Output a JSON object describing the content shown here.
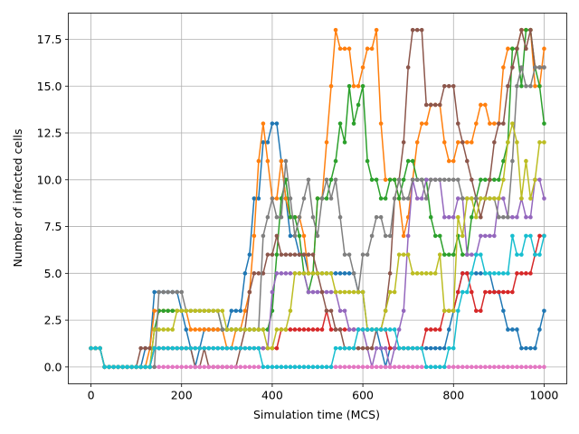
{
  "chart_data": {
    "type": "line",
    "title": "",
    "xlabel": "Simulation time (MCS)",
    "ylabel": "Number of infected cells",
    "xlim": [
      -50,
      1050
    ],
    "ylim": [
      -0.9,
      18.9
    ],
    "xticks": [
      0,
      200,
      400,
      600,
      800,
      1000
    ],
    "yticks": [
      0.0,
      2.5,
      5.0,
      7.5,
      10.0,
      12.5,
      15.0,
      17.5
    ],
    "xtick_labels": [
      "0",
      "200",
      "400",
      "600",
      "800",
      "1000"
    ],
    "ytick_labels": [
      "0.0",
      "2.5",
      "5.0",
      "7.5",
      "10.0",
      "12.5",
      "15.0",
      "17.5"
    ],
    "grid": true,
    "marker": "circle",
    "x": [
      0,
      10,
      20,
      30,
      40,
      50,
      60,
      70,
      80,
      90,
      100,
      110,
      120,
      130,
      140,
      150,
      160,
      170,
      180,
      190,
      200,
      210,
      220,
      230,
      240,
      250,
      260,
      270,
      280,
      290,
      300,
      310,
      320,
      330,
      340,
      350,
      360,
      370,
      380,
      390,
      400,
      410,
      420,
      430,
      440,
      450,
      460,
      470,
      480,
      490,
      500,
      510,
      520,
      530,
      540,
      550,
      560,
      570,
      580,
      590,
      600,
      610,
      620,
      630,
      640,
      650,
      660,
      670,
      680,
      690,
      700,
      710,
      720,
      730,
      740,
      750,
      760,
      770,
      780,
      790,
      800,
      810,
      820,
      830,
      840,
      850,
      860,
      870,
      880,
      890,
      900,
      910,
      920,
      930,
      940,
      950,
      960,
      970,
      980,
      990,
      1000
    ],
    "series": [
      {
        "color": "#1f77b4",
        "values": [
          1,
          1,
          1,
          0,
          0,
          0,
          0,
          0,
          0,
          0,
          0,
          0,
          1,
          1,
          4,
          4,
          4,
          4,
          4,
          4,
          3,
          2,
          1,
          0,
          1,
          2,
          2,
          2,
          2,
          2,
          2,
          3,
          3,
          3,
          5,
          6,
          9,
          9,
          12,
          12,
          13,
          13,
          11,
          9,
          7,
          7,
          6,
          6,
          5,
          5,
          5,
          5,
          5,
          5,
          5,
          5,
          5,
          5,
          5,
          4,
          4,
          2,
          2,
          2,
          1,
          0,
          1,
          1,
          1,
          1,
          1,
          1,
          1,
          1,
          1,
          1,
          1,
          1,
          1,
          2,
          3,
          4,
          5,
          5,
          5,
          5,
          5,
          5,
          5,
          4,
          4,
          3,
          2,
          2,
          2,
          1,
          1,
          1,
          1,
          2,
          3
        ]
      },
      {
        "color": "#ff7f0e",
        "values": [
          1,
          1,
          1,
          0,
          0,
          0,
          0,
          0,
          0,
          0,
          0,
          0,
          0,
          1,
          3,
          3,
          3,
          3,
          3,
          3,
          3,
          3,
          2,
          2,
          2,
          2,
          2,
          2,
          2,
          2,
          1,
          1,
          2,
          2,
          3,
          4,
          7,
          11,
          13,
          11,
          9,
          9,
          11,
          9,
          8,
          8,
          8,
          7,
          5,
          5,
          9,
          9,
          12,
          15,
          18,
          17,
          17,
          17,
          15,
          15,
          16,
          17,
          17,
          18,
          13,
          10,
          10,
          10,
          9,
          7,
          8,
          10,
          12,
          13,
          13,
          14,
          14,
          14,
          12,
          11,
          11,
          12,
          12,
          12,
          12,
          13,
          14,
          14,
          13,
          13,
          13,
          16,
          17,
          17,
          17,
          18,
          18,
          18,
          15,
          15,
          17
        ]
      },
      {
        "color": "#2ca02c",
        "values": [
          1,
          1,
          1,
          0,
          0,
          0,
          0,
          0,
          0,
          0,
          0,
          0,
          0,
          0,
          2,
          3,
          3,
          3,
          3,
          3,
          3,
          3,
          3,
          3,
          3,
          3,
          3,
          3,
          3,
          2,
          2,
          2,
          2,
          2,
          2,
          2,
          2,
          2,
          2,
          2,
          3,
          6,
          9,
          10,
          8,
          8,
          7,
          5,
          4,
          5,
          9,
          9,
          9,
          10,
          11,
          13,
          12,
          15,
          13,
          14,
          15,
          11,
          10,
          10,
          9,
          9,
          10,
          10,
          9,
          10,
          11,
          11,
          10,
          10,
          10,
          8,
          7,
          7,
          6,
          6,
          6,
          7,
          6,
          6,
          8,
          9,
          10,
          10,
          10,
          10,
          10,
          11,
          12,
          17,
          17,
          15,
          18,
          18,
          16,
          15,
          13
        ]
      },
      {
        "color": "#d62728",
        "values": [
          1,
          1,
          1,
          0,
          0,
          0,
          0,
          0,
          0,
          0,
          0,
          0,
          0,
          0,
          1,
          1,
          1,
          1,
          1,
          1,
          1,
          1,
          1,
          1,
          1,
          1,
          1,
          1,
          1,
          1,
          1,
          1,
          1,
          1,
          1,
          1,
          1,
          1,
          1,
          1,
          1,
          1,
          2,
          2,
          2,
          2,
          2,
          2,
          2,
          2,
          2,
          2,
          3,
          2,
          2,
          2,
          2,
          2,
          2,
          2,
          2,
          2,
          2,
          2,
          2,
          2,
          1,
          1,
          1,
          1,
          1,
          1,
          1,
          1,
          2,
          2,
          2,
          2,
          3,
          3,
          3,
          4,
          5,
          5,
          4,
          3,
          3,
          4,
          4,
          4,
          4,
          4,
          4,
          4,
          5,
          5,
          5,
          5,
          6,
          7,
          7
        ]
      },
      {
        "color": "#9467bd",
        "values": [
          1,
          1,
          1,
          0,
          0,
          0,
          0,
          0,
          0,
          0,
          0,
          0,
          0,
          0,
          1,
          1,
          1,
          1,
          1,
          1,
          1,
          1,
          1,
          1,
          1,
          1,
          1,
          1,
          1,
          1,
          1,
          1,
          1,
          1,
          1,
          1,
          1,
          1,
          1,
          1,
          4,
          5,
          5,
          5,
          5,
          5,
          5,
          5,
          4,
          4,
          4,
          4,
          4,
          4,
          4,
          3,
          3,
          2,
          2,
          2,
          2,
          1,
          0,
          1,
          1,
          1,
          0,
          1,
          2,
          3,
          7,
          10,
          9,
          9,
          10,
          10,
          10,
          10,
          8,
          8,
          8,
          9,
          9,
          6,
          6,
          6,
          7,
          7,
          7,
          7,
          9,
          9,
          8,
          8,
          8,
          9,
          8,
          8,
          10,
          10,
          9
        ]
      },
      {
        "color": "#8c564b",
        "values": [
          1,
          1,
          1,
          0,
          0,
          0,
          0,
          0,
          0,
          0,
          0,
          1,
          1,
          1,
          1,
          1,
          1,
          1,
          1,
          1,
          1,
          1,
          1,
          0,
          0,
          1,
          0,
          0,
          0,
          0,
          0,
          0,
          0,
          1,
          2,
          4,
          5,
          5,
          5,
          6,
          6,
          7,
          6,
          6,
          6,
          6,
          6,
          6,
          6,
          6,
          5,
          4,
          3,
          3,
          2,
          2,
          1,
          1,
          1,
          1,
          1,
          1,
          1,
          2,
          2,
          3,
          5,
          9,
          10,
          12,
          16,
          18,
          18,
          18,
          14,
          14,
          14,
          14,
          15,
          15,
          15,
          13,
          12,
          11,
          10,
          9,
          8,
          9,
          10,
          12,
          13,
          13,
          15,
          16,
          17,
          18,
          17,
          18,
          16,
          16,
          16
        ]
      },
      {
        "color": "#e377c2",
        "values": [
          1,
          1,
          1,
          0,
          0,
          0,
          0,
          0,
          0,
          0,
          0,
          0,
          0,
          0,
          0,
          0,
          0,
          0,
          0,
          0,
          0,
          0,
          0,
          0,
          0,
          0,
          0,
          0,
          0,
          0,
          0,
          0,
          0,
          0,
          0,
          0,
          0,
          0,
          0,
          0,
          0,
          0,
          0,
          0,
          0,
          0,
          0,
          0,
          0,
          0,
          0,
          0,
          0,
          0,
          0,
          0,
          0,
          0,
          0,
          0,
          0,
          0,
          0,
          0,
          0,
          0,
          0,
          0,
          0,
          0,
          0,
          0,
          0,
          0,
          0,
          0,
          0,
          0,
          0,
          0,
          0,
          0,
          0,
          0,
          0,
          0,
          0,
          0,
          0,
          0,
          0,
          0,
          0,
          0,
          0,
          0,
          0,
          0,
          0,
          0,
          0
        ]
      },
      {
        "color": "#7f7f7f",
        "values": [
          1,
          1,
          1,
          0,
          0,
          0,
          0,
          0,
          0,
          0,
          0,
          0,
          0,
          0,
          0,
          4,
          4,
          4,
          4,
          4,
          4,
          3,
          3,
          3,
          3,
          3,
          3,
          3,
          3,
          2,
          2,
          2,
          2,
          2,
          2,
          2,
          2,
          2,
          7,
          8,
          9,
          8,
          8,
          11,
          9,
          7,
          8,
          9,
          10,
          8,
          7,
          9,
          10,
          9,
          10,
          8,
          6,
          6,
          5,
          4,
          6,
          6,
          7,
          8,
          8,
          7,
          7,
          9,
          10,
          9,
          9,
          10,
          10,
          10,
          9,
          10,
          10,
          10,
          10,
          10,
          10,
          10,
          9,
          9,
          9,
          9,
          9,
          9,
          9,
          9,
          8,
          8,
          8,
          11,
          15,
          16,
          15,
          15,
          16,
          16,
          16
        ]
      },
      {
        "color": "#bcbd22",
        "values": [
          1,
          1,
          1,
          0,
          0,
          0,
          0,
          0,
          0,
          0,
          0,
          0,
          0,
          0,
          2,
          2,
          2,
          2,
          2,
          3,
          3,
          3,
          3,
          3,
          3,
          3,
          3,
          3,
          3,
          3,
          2,
          2,
          2,
          2,
          2,
          2,
          2,
          2,
          2,
          1,
          1,
          2,
          2,
          2,
          3,
          5,
          5,
          5,
          5,
          5,
          5,
          5,
          5,
          5,
          4,
          4,
          4,
          4,
          4,
          4,
          4,
          2,
          2,
          2,
          2,
          3,
          4,
          4,
          6,
          6,
          6,
          5,
          5,
          5,
          5,
          5,
          5,
          6,
          3,
          3,
          3,
          8,
          7,
          9,
          9,
          8,
          9,
          9,
          9,
          9,
          9,
          10,
          12,
          13,
          12,
          9,
          11,
          9,
          10,
          12,
          12
        ]
      },
      {
        "color": "#17becf",
        "values": [
          1,
          1,
          1,
          0,
          0,
          0,
          0,
          0,
          0,
          0,
          0,
          0,
          0,
          0,
          1,
          1,
          1,
          1,
          1,
          1,
          1,
          1,
          1,
          1,
          1,
          1,
          1,
          1,
          1,
          1,
          1,
          1,
          1,
          1,
          1,
          1,
          1,
          1,
          0,
          0,
          0,
          0,
          0,
          0,
          0,
          0,
          0,
          0,
          0,
          0,
          0,
          0,
          0,
          0,
          1,
          1,
          1,
          1,
          1,
          2,
          2,
          2,
          2,
          2,
          2,
          2,
          2,
          2,
          1,
          1,
          1,
          1,
          1,
          1,
          0,
          0,
          0,
          0,
          0,
          1,
          1,
          3,
          4,
          4,
          5,
          6,
          6,
          5,
          5,
          5,
          5,
          5,
          5,
          7,
          6,
          6,
          7,
          7,
          6,
          6,
          7
        ]
      }
    ]
  }
}
